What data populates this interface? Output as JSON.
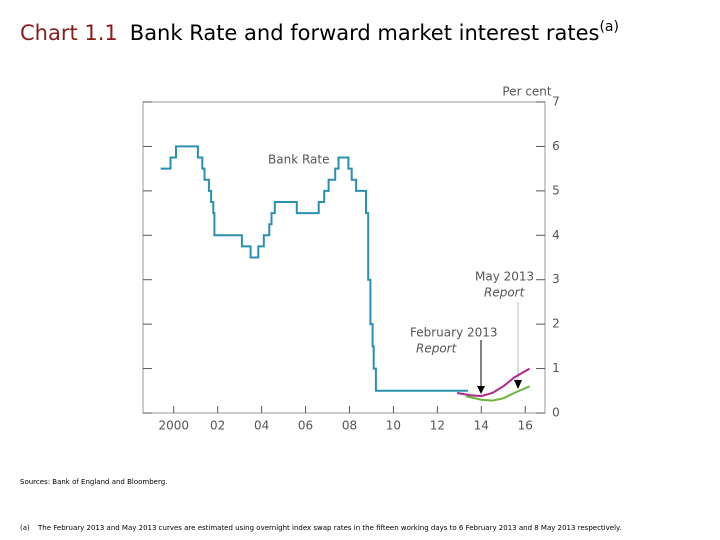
{
  "chart_data": {
    "type": "line",
    "chart_label": "Chart 1.1",
    "title": "Bank Rate and forward market interest rates",
    "title_note": "(a)",
    "y_axis_label": "Per cent",
    "xlim": [
      1998.6,
      2016.9
    ],
    "ylim": [
      0,
      7
    ],
    "xticks": [
      2000,
      {
        "value": 2002,
        "label": "02"
      },
      {
        "value": 2004,
        "label": "04"
      },
      {
        "value": 2006,
        "label": "06"
      },
      {
        "value": 2008,
        "label": "08"
      },
      {
        "value": 2010,
        "label": "10"
      },
      {
        "value": 2012,
        "label": "12"
      },
      {
        "value": 2014,
        "label": "14"
      },
      {
        "value": 2016,
        "label": "16"
      }
    ],
    "yticks": [
      0,
      1,
      2,
      3,
      4,
      5,
      6,
      7
    ],
    "series": [
      {
        "name": "Bank Rate",
        "color": "#2b8fb0",
        "x": [
          1999.4,
          1999.85,
          1999.85,
          2000.1,
          2000.1,
          2001.1,
          2001.1,
          2001.3,
          2001.3,
          2001.4,
          2001.4,
          2001.6,
          2001.6,
          2001.7,
          2001.7,
          2001.8,
          2001.8,
          2001.85,
          2001.85,
          2003.1,
          2003.1,
          2003.5,
          2003.5,
          2003.85,
          2003.85,
          2004.1,
          2004.1,
          2004.35,
          2004.35,
          2004.45,
          2004.45,
          2004.6,
          2004.6,
          2005.6,
          2005.6,
          2006.6,
          2006.6,
          2006.85,
          2006.85,
          2007.05,
          2007.05,
          2007.35,
          2007.35,
          2007.5,
          2007.5,
          2007.95,
          2007.95,
          2008.1,
          2008.1,
          2008.3,
          2008.3,
          2008.75,
          2008.75,
          2008.85,
          2008.85,
          2008.95,
          2008.95,
          2009.05,
          2009.05,
          2009.1,
          2009.1,
          2009.2,
          2009.2,
          2013.4
        ],
        "values": [
          5.5,
          5.5,
          5.75,
          5.75,
          6.0,
          6.0,
          5.75,
          5.75,
          5.5,
          5.5,
          5.25,
          5.25,
          5.0,
          5.0,
          4.75,
          4.75,
          4.5,
          4.5,
          4.0,
          4.0,
          3.75,
          3.75,
          3.5,
          3.5,
          3.75,
          3.75,
          4.0,
          4.0,
          4.25,
          4.25,
          4.5,
          4.5,
          4.75,
          4.75,
          4.5,
          4.5,
          4.75,
          4.75,
          5.0,
          5.0,
          5.25,
          5.25,
          5.5,
          5.5,
          5.75,
          5.75,
          5.5,
          5.5,
          5.25,
          5.25,
          5.0,
          5.0,
          4.5,
          4.5,
          3.0,
          3.0,
          2.0,
          2.0,
          1.5,
          1.5,
          1.0,
          1.0,
          0.5,
          0.5
        ]
      },
      {
        "color": "#b0288c",
        "x": [
          2012.9,
          2013.5,
          2014.0,
          2014.5,
          2015.0,
          2015.5,
          2016.2
        ],
        "values": [
          0.45,
          0.4,
          0.38,
          0.45,
          0.6,
          0.8,
          1.0
        ]
      },
      {
        "color": "#6db33f",
        "x": [
          2013.3,
          2014.0,
          2014.5,
          2015.0,
          2015.5,
          2016.2
        ],
        "values": [
          0.38,
          0.3,
          0.28,
          0.33,
          0.45,
          0.6
        ]
      }
    ],
    "annotations": [
      {
        "text": "February 2013",
        "subtext": "Report"
      },
      {
        "text": "May 2013",
        "subtext": "Report"
      }
    ],
    "sources": "Sources: Bank of England and Bloomberg.",
    "footnote_marker": "(a)",
    "footnote": "The February 2013 and May 2013 curves are estimated using overnight index swap rates in the fifteen working days to 6 February 2013 and 8 May 2013 respectively."
  }
}
